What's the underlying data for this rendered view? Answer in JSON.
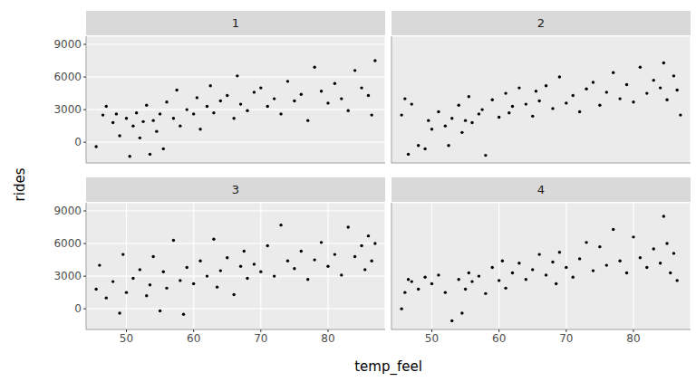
{
  "chart_data": {
    "type": "scatter",
    "xlabel": "temp_feel",
    "ylabel": "rides",
    "xlim": [
      44,
      88.5
    ],
    "ylim": [
      -1900,
      9750
    ],
    "xticks": [
      50,
      60,
      70,
      80
    ],
    "yticks": [
      0,
      3000,
      6000,
      9000
    ],
    "grid": true,
    "color": "#000000",
    "panels": [
      {
        "title": "1",
        "x": [
          45.5,
          46.5,
          47,
          48,
          48.5,
          49,
          50,
          50.5,
          51,
          51.5,
          52,
          52.5,
          53,
          53.5,
          54,
          54.5,
          55,
          55.5,
          56,
          57,
          57.5,
          58,
          59,
          60,
          60.5,
          61,
          62,
          62.5,
          63,
          64,
          65,
          66,
          66.5,
          67,
          68,
          69,
          70,
          71,
          72,
          73,
          74,
          75,
          76,
          77,
          78,
          79,
          80,
          81,
          82,
          83,
          84,
          85,
          86,
          86.5,
          87
        ],
        "values": [
          -400,
          2500,
          3300,
          1800,
          2600,
          600,
          2200,
          -1300,
          1500,
          2700,
          400,
          1900,
          3400,
          -1100,
          2000,
          1000,
          2600,
          -600,
          3700,
          2200,
          4800,
          1500,
          3000,
          2600,
          4100,
          1200,
          3300,
          5200,
          2700,
          3800,
          4300,
          2200,
          6100,
          3500,
          2900,
          4600,
          5000,
          3300,
          4000,
          2600,
          5600,
          3800,
          4400,
          2000,
          6900,
          4700,
          3600,
          5400,
          4000,
          2900,
          6600,
          5000,
          4300,
          2500,
          7500
        ]
      },
      {
        "title": "2",
        "x": [
          45.5,
          46,
          46.5,
          47,
          48,
          49,
          49.5,
          50,
          51,
          52,
          52.5,
          53,
          54,
          54.5,
          55,
          55.5,
          56,
          57,
          57.5,
          58,
          59,
          60,
          61,
          61.5,
          62,
          63,
          64,
          65,
          65.5,
          66,
          67,
          68,
          69,
          70,
          71,
          72,
          73,
          74,
          75,
          76,
          77,
          78,
          79,
          80,
          81,
          82,
          83,
          84,
          84.5,
          85,
          86,
          86.5,
          87
        ],
        "values": [
          2500,
          4000,
          -1100,
          3500,
          -300,
          -600,
          2000,
          1200,
          2800,
          1500,
          -300,
          2200,
          3400,
          900,
          2000,
          4200,
          1800,
          2600,
          3000,
          -1200,
          3900,
          2300,
          4500,
          2700,
          3300,
          5000,
          3500,
          2400,
          4700,
          3800,
          5200,
          3100,
          6000,
          3600,
          4300,
          2800,
          4900,
          5500,
          3400,
          4600,
          6400,
          4000,
          5300,
          3700,
          6900,
          4500,
          5700,
          5000,
          7300,
          3900,
          6100,
          4800,
          2500
        ]
      },
      {
        "title": "3",
        "x": [
          45.5,
          46,
          47,
          48,
          49,
          49.5,
          50,
          51,
          52,
          53,
          53.5,
          54,
          55,
          55.5,
          56,
          57,
          58,
          58.5,
          59,
          60,
          61,
          62,
          63,
          63.5,
          64,
          65,
          66,
          67,
          67.5,
          68,
          69,
          70,
          71,
          72,
          73,
          74,
          75,
          76,
          77,
          78,
          79,
          80,
          81,
          82,
          83,
          84,
          85,
          85.5,
          86,
          86.5,
          87
        ],
        "values": [
          1800,
          4000,
          1000,
          2500,
          -400,
          5000,
          1500,
          2800,
          3600,
          1200,
          2200,
          4800,
          -200,
          3400,
          1900,
          6300,
          2600,
          -500,
          3800,
          2300,
          4400,
          3000,
          6400,
          2000,
          3500,
          4700,
          1300,
          3900,
          5300,
          2800,
          4100,
          3400,
          5800,
          3000,
          7700,
          4400,
          3700,
          5300,
          2700,
          4500,
          6100,
          3900,
          5000,
          3100,
          7500,
          4800,
          5800,
          3600,
          6700,
          4400,
          6000
        ]
      },
      {
        "title": "4",
        "x": [
          45.5,
          46,
          46.5,
          47,
          48,
          49,
          50,
          51,
          52,
          53,
          54,
          54.5,
          55,
          55.5,
          56,
          57,
          58,
          59,
          60,
          60.5,
          61,
          62,
          63,
          64,
          65,
          66,
          67,
          68,
          68.5,
          69,
          70,
          71,
          72,
          73,
          74,
          75,
          76,
          77,
          78,
          79,
          80,
          81,
          82,
          83,
          84,
          84.5,
          85,
          85.5,
          86,
          86.5
        ],
        "values": [
          0,
          1500,
          2700,
          2500,
          1800,
          2900,
          2300,
          3100,
          1500,
          -1100,
          2700,
          -400,
          1800,
          3300,
          2500,
          3000,
          1400,
          3800,
          2600,
          4400,
          1900,
          3300,
          4200,
          2700,
          3600,
          5000,
          3100,
          4300,
          2300,
          5200,
          3800,
          2900,
          4600,
          6100,
          3500,
          5700,
          4000,
          7300,
          4400,
          3300,
          6600,
          4700,
          3800,
          5500,
          4200,
          8500,
          6000,
          3300,
          5100,
          2600
        ]
      }
    ]
  }
}
